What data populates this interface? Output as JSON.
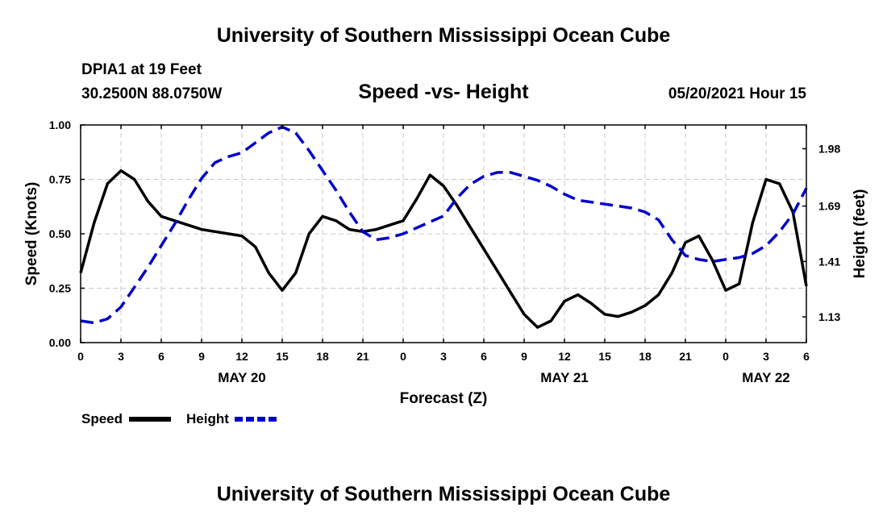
{
  "header": {
    "top_title": "University of Southern Mississippi Ocean Cube",
    "station": "DPIA1 at 19 Feet",
    "coords": "30.2500N  88.0750W",
    "timestamp": "05/20/2021 Hour 15",
    "bottom_title": "University of Southern Mississippi Ocean Cube"
  },
  "chart_data": {
    "type": "line",
    "title": "Speed -vs- Height",
    "xlabel": "Forecast (Z)",
    "ylabel": "Speed (Knots)",
    "y2label": "Height (feet)",
    "x_range": [
      0,
      54
    ],
    "ylim": [
      0,
      1
    ],
    "y2lim": [
      1.0,
      2.1
    ],
    "grid": true,
    "x_ticks": [
      {
        "x": 0,
        "label": "0"
      },
      {
        "x": 3,
        "label": "3"
      },
      {
        "x": 6,
        "label": "6"
      },
      {
        "x": 9,
        "label": "9"
      },
      {
        "x": 12,
        "label": "12"
      },
      {
        "x": 15,
        "label": "15"
      },
      {
        "x": 18,
        "label": "18"
      },
      {
        "x": 21,
        "label": "21"
      },
      {
        "x": 24,
        "label": "0"
      },
      {
        "x": 27,
        "label": "3"
      },
      {
        "x": 30,
        "label": "6"
      },
      {
        "x": 33,
        "label": "9"
      },
      {
        "x": 36,
        "label": "12"
      },
      {
        "x": 39,
        "label": "15"
      },
      {
        "x": 42,
        "label": "18"
      },
      {
        "x": 45,
        "label": "21"
      },
      {
        "x": 48,
        "label": "0"
      },
      {
        "x": 51,
        "label": "3"
      },
      {
        "x": 54,
        "label": "6"
      }
    ],
    "date_labels": [
      {
        "x": 12,
        "label": "MAY 20"
      },
      {
        "x": 36,
        "label": "MAY 21"
      },
      {
        "x": 51,
        "label": "MAY 22"
      }
    ],
    "y_ticks": [
      {
        "y": 0.0,
        "label": "0.00"
      },
      {
        "y": 0.25,
        "label": "0.25"
      },
      {
        "y": 0.5,
        "label": "0.50"
      },
      {
        "y": 0.75,
        "label": "0.75"
      },
      {
        "y": 1.0,
        "label": "1.00"
      }
    ],
    "y2_ticks": [
      {
        "y": 1.13,
        "label": "1.13"
      },
      {
        "y": 1.41,
        "label": "1.41"
      },
      {
        "y": 1.69,
        "label": "1.69"
      },
      {
        "y": 1.98,
        "label": "1.98"
      }
    ],
    "series": [
      {
        "name": "Speed",
        "axis": "left",
        "color": "#000000",
        "dash": false,
        "x": [
          0,
          1,
          2,
          3,
          4,
          5,
          6,
          7,
          8,
          9,
          10,
          11,
          12,
          13,
          14,
          15,
          16,
          17,
          18,
          19,
          20,
          21,
          22,
          23,
          24,
          25,
          26,
          27,
          28,
          29,
          30,
          31,
          32,
          33,
          34,
          35,
          36,
          37,
          38,
          39,
          40,
          41,
          42,
          43,
          44,
          45,
          46,
          47,
          48,
          49,
          50,
          51,
          52,
          53,
          54
        ],
        "values": [
          0.32,
          0.55,
          0.73,
          0.79,
          0.75,
          0.65,
          0.58,
          0.56,
          0.54,
          0.52,
          0.51,
          0.5,
          0.49,
          0.44,
          0.32,
          0.24,
          0.32,
          0.5,
          0.58,
          0.56,
          0.52,
          0.51,
          0.52,
          0.54,
          0.56,
          0.66,
          0.77,
          0.72,
          0.63,
          0.53,
          0.43,
          0.33,
          0.23,
          0.13,
          0.07,
          0.1,
          0.19,
          0.22,
          0.18,
          0.13,
          0.12,
          0.14,
          0.17,
          0.22,
          0.32,
          0.46,
          0.49,
          0.38,
          0.24,
          0.27,
          0.55,
          0.75,
          0.73,
          0.6,
          0.26
        ]
      },
      {
        "name": "Height",
        "axis": "right",
        "color": "#0000cc",
        "dash": true,
        "x": [
          0,
          1,
          2,
          3,
          4,
          5,
          6,
          7,
          8,
          9,
          10,
          11,
          12,
          13,
          14,
          15,
          16,
          17,
          18,
          19,
          20,
          21,
          22,
          23,
          24,
          25,
          26,
          27,
          28,
          29,
          30,
          31,
          32,
          33,
          34,
          35,
          36,
          37,
          38,
          39,
          40,
          41,
          42,
          43,
          44,
          45,
          46,
          47,
          48,
          49,
          50,
          51,
          52,
          53,
          54
        ],
        "values": [
          1.11,
          1.1,
          1.12,
          1.18,
          1.28,
          1.38,
          1.49,
          1.6,
          1.72,
          1.83,
          1.91,
          1.94,
          1.96,
          2.01,
          2.06,
          2.09,
          2.06,
          1.97,
          1.87,
          1.77,
          1.66,
          1.56,
          1.52,
          1.53,
          1.55,
          1.58,
          1.61,
          1.64,
          1.73,
          1.8,
          1.84,
          1.86,
          1.86,
          1.84,
          1.82,
          1.79,
          1.75,
          1.72,
          1.71,
          1.7,
          1.69,
          1.68,
          1.66,
          1.62,
          1.52,
          1.44,
          1.42,
          1.41,
          1.42,
          1.43,
          1.45,
          1.49,
          1.56,
          1.65,
          1.78
        ]
      }
    ],
    "legend": {
      "position": "bottom-left",
      "items": [
        {
          "label": "Speed",
          "color": "#000000",
          "dash": false
        },
        {
          "label": "Height",
          "color": "#0000cc",
          "dash": true
        }
      ]
    }
  }
}
